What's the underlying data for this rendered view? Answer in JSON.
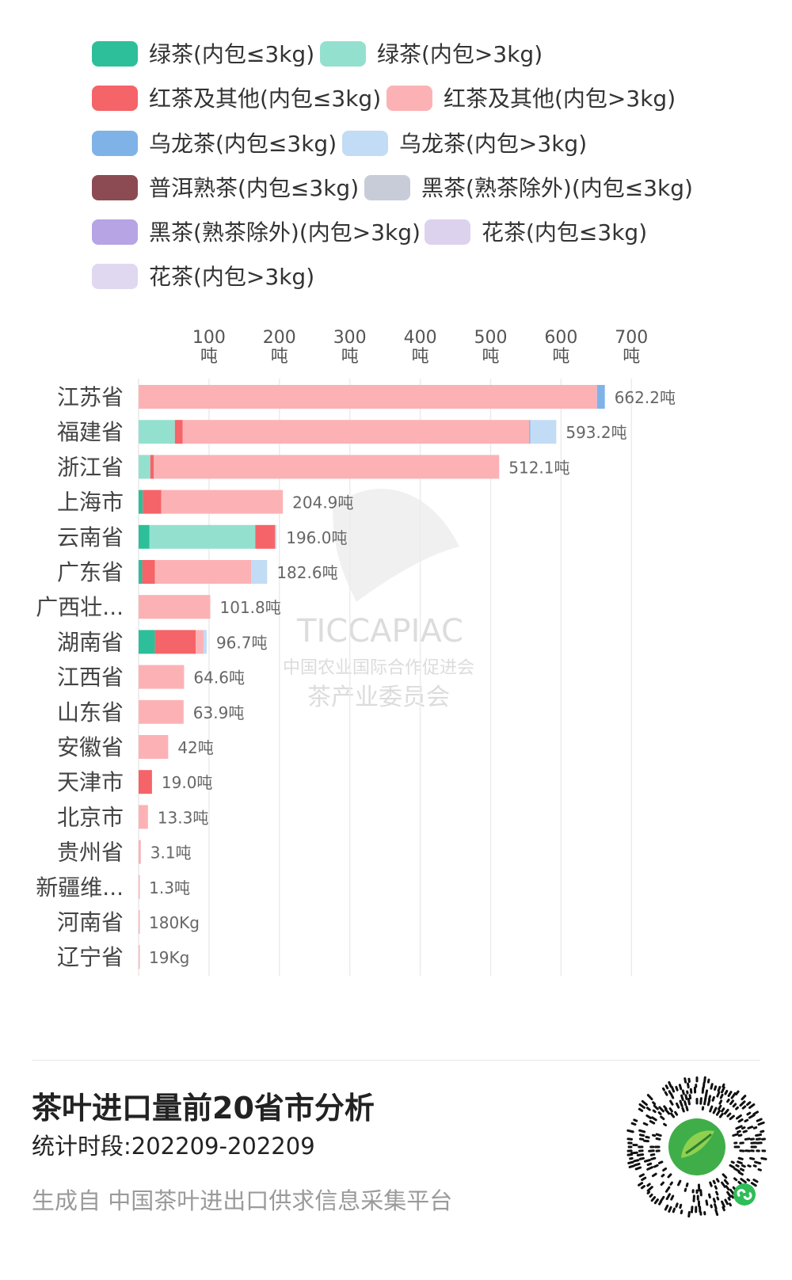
{
  "chart_data": {
    "type": "bar",
    "orientation": "horizontal",
    "stacked": true,
    "legend_position": "top",
    "grid": true,
    "xlim": [
      0,
      700
    ],
    "x_ticks": [
      {
        "value": 100,
        "label": "100",
        "unit": "吨"
      },
      {
        "value": 200,
        "label": "200",
        "unit": "吨"
      },
      {
        "value": 300,
        "label": "300",
        "unit": "吨"
      },
      {
        "value": 400,
        "label": "400",
        "unit": "吨"
      },
      {
        "value": 500,
        "label": "500",
        "unit": "吨"
      },
      {
        "value": 600,
        "label": "600",
        "unit": "吨"
      },
      {
        "value": 700,
        "label": "700",
        "unit": "吨"
      }
    ],
    "legend": [
      {
        "name": "绿茶(内包≤3kg)",
        "color": "#2dbf9a"
      },
      {
        "name": "绿茶(内包>3kg)",
        "color": "#94e0cf"
      },
      {
        "name": "红茶及其他(内包≤3kg)",
        "color": "#f56468"
      },
      {
        "name": "红茶及其他(内包>3kg)",
        "color": "#fcb2b5"
      },
      {
        "name": "乌龙茶(内包≤3kg)",
        "color": "#7fb3e8"
      },
      {
        "name": "乌龙茶(内包>3kg)",
        "color": "#c2dcf5"
      },
      {
        "name": "普洱熟茶(内包≤3kg)",
        "color": "#8c4a52"
      },
      {
        "name": "黑茶(熟茶除外)(内包≤3kg)",
        "color": "#c8ccd8"
      },
      {
        "name": "黑茶(熟茶除外)(内包>3kg)",
        "color": "#b6a4e4"
      },
      {
        "name": "花茶(内包≤3kg)",
        "color": "#dcd2ee"
      },
      {
        "name": "花茶(内包>3kg)",
        "color": "#e0d8f0"
      }
    ],
    "categories": [
      "江苏省",
      "福建省",
      "浙江省",
      "上海市",
      "云南省",
      "广东省",
      "广西壮...",
      "湖南省",
      "江西省",
      "山东省",
      "安徽省",
      "天津市",
      "北京市",
      "贵州省",
      "新疆维...",
      "河南省",
      "辽宁省"
    ],
    "series": [
      {
        "name": "绿茶(内包≤3kg)",
        "values": [
          0,
          0,
          0,
          5.8,
          15.5,
          5.1,
          0,
          23.2,
          0,
          0,
          0,
          0,
          0,
          0,
          0,
          0,
          0
        ]
      },
      {
        "name": "绿茶(内包>3kg)",
        "values": [
          0,
          51.5,
          16.6,
          0,
          150.2,
          0,
          0,
          0,
          0,
          0,
          0,
          0,
          0,
          0,
          0,
          0,
          0
        ]
      },
      {
        "name": "红茶及其他(内包≤3kg)",
        "values": [
          0,
          11.2,
          5.1,
          26.3,
          28.2,
          18.0,
          0,
          58.0,
          0,
          0,
          0,
          19.0,
          0,
          0,
          0,
          0,
          0
        ]
      },
      {
        "name": "红茶及其他(内包>3kg)",
        "values": [
          651.0,
          492.0,
          490.4,
          172.8,
          0,
          137.0,
          101.8,
          11.0,
          64.6,
          63.9,
          42.0,
          0,
          13.3,
          3.1,
          1.3,
          0.18,
          0.019
        ]
      },
      {
        "name": "乌龙茶(内包≤3kg)",
        "values": [
          11.2,
          1.5,
          0,
          0,
          0,
          0,
          0,
          0,
          0,
          0,
          0,
          0,
          0,
          0,
          0,
          0,
          0
        ]
      },
      {
        "name": "乌龙茶(内包>3kg)",
        "values": [
          0,
          37.0,
          0,
          0,
          2.1,
          22.5,
          0,
          4.5,
          0,
          0,
          0,
          0,
          0,
          0,
          0,
          0,
          0
        ]
      }
    ],
    "value_labels": [
      "662.2吨",
      "593.2吨",
      "512.1吨",
      "204.9吨",
      "196.0吨",
      "182.6吨",
      "101.8吨",
      "96.7吨",
      "64.6吨",
      "63.9吨",
      "42吨",
      "19.0吨",
      "13.3吨",
      "3.1吨",
      "1.3吨",
      "180Kg",
      "19Kg"
    ],
    "watermark": {
      "line1": "TICCAPIAC",
      "line2": "中国农业国际合作促进会",
      "line3": "茶产业委员会"
    }
  },
  "footer": {
    "title": "茶叶进口量前20省市分析",
    "period": "统计时段:202209-202209",
    "source": "生成自 中国茶叶进出口供求信息采集平台",
    "qr_icon": "mini-program-qr-icon"
  }
}
